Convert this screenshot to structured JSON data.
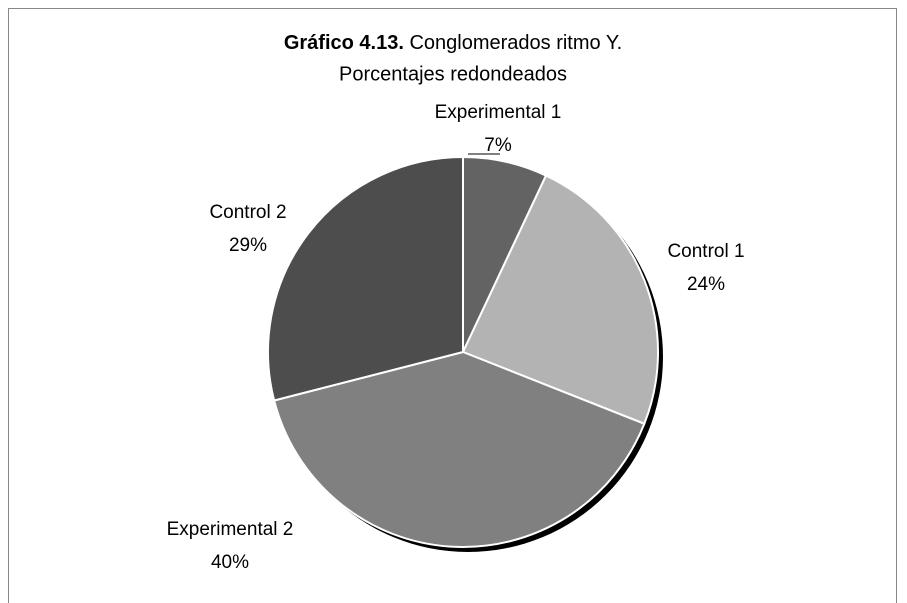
{
  "chart_data": {
    "type": "pie",
    "title_label": "Gráfico 4.13.",
    "title": "Conglomerados ritmo Y.",
    "subtitle": "Porcentajes redondeados",
    "categories": [
      "Experimental 1",
      "Control 1",
      "Experimental 2",
      "Control 2"
    ],
    "values": [
      7,
      24,
      40,
      29
    ],
    "value_labels": [
      "7%",
      "24%",
      "40%",
      "29%"
    ],
    "colors": [
      "#636363",
      "#b3b3b3",
      "#808080",
      "#4d4d4d"
    ]
  }
}
